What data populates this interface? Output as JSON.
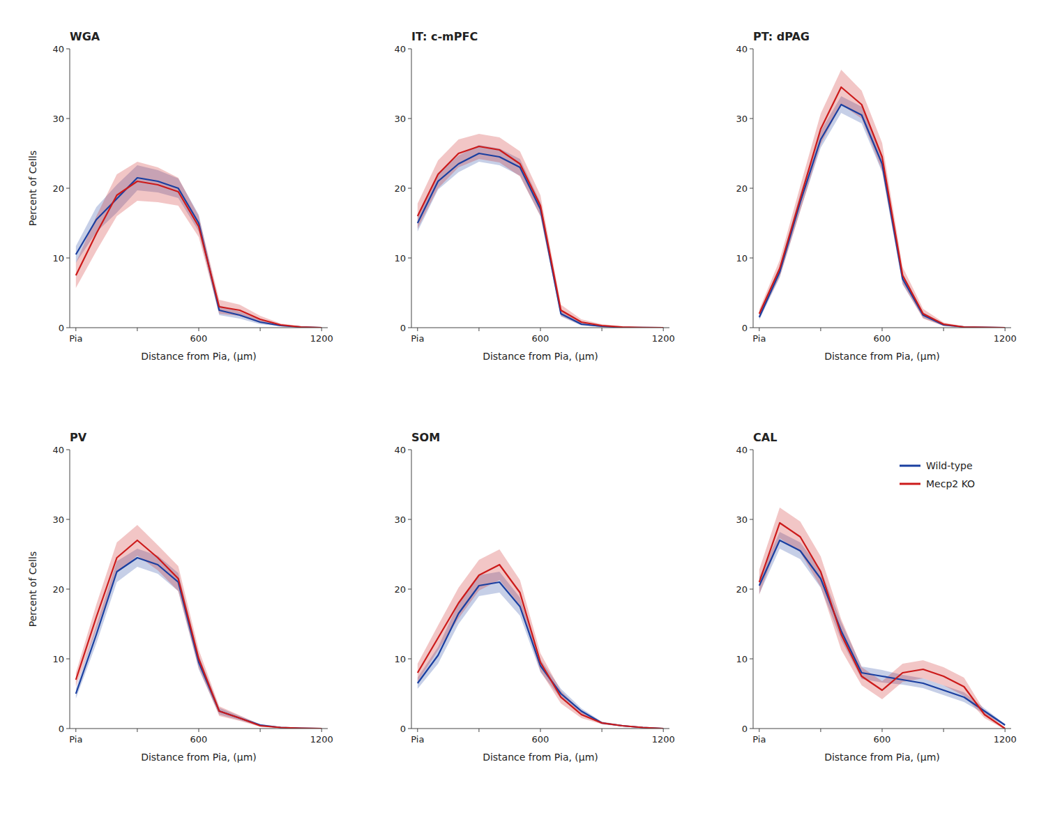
{
  "chart_data": [
    {
      "type": "line",
      "title": "WGA",
      "xlabel": "Distance from Pia, (μm)",
      "ylabel": "Percent of Cells",
      "x": [
        0,
        100,
        200,
        300,
        400,
        500,
        600,
        700,
        800,
        900,
        1000,
        1100,
        1200
      ],
      "series": [
        {
          "name": "Wild-type",
          "color": "#1a3fa0",
          "values": [
            10.5,
            15.5,
            18.5,
            21.5,
            21.0,
            20.0,
            15.0,
            2.5,
            1.8,
            0.8,
            0.3,
            0.1,
            0.0
          ],
          "sem": [
            1.2,
            1.8,
            2.0,
            1.8,
            1.6,
            1.4,
            1.2,
            0.7,
            0.5,
            0.3,
            0.1,
            0.05,
            0.0
          ]
        },
        {
          "name": "Mecp2 KO",
          "color": "#cc1a1a",
          "values": [
            7.5,
            13.5,
            19.0,
            21.0,
            20.5,
            19.5,
            14.5,
            3.0,
            2.5,
            1.2,
            0.4,
            0.1,
            0.0
          ],
          "sem": [
            1.8,
            2.5,
            3.0,
            2.8,
            2.5,
            2.0,
            1.5,
            1.0,
            0.8,
            0.5,
            0.2,
            0.1,
            0.0
          ]
        }
      ],
      "xlim": [
        -30,
        1230
      ],
      "ylim": [
        0,
        40
      ],
      "yticks": [
        0,
        10,
        20,
        30,
        40
      ],
      "xticks": [
        {
          "value": 0,
          "label": "Pia"
        },
        {
          "value": 300,
          "label": null
        },
        600,
        {
          "value": 900,
          "label": null
        },
        1200
      ],
      "grid": false
    },
    {
      "type": "line",
      "title": "IT: c-mPFC",
      "xlabel": "Distance from Pia, (μm)",
      "x": [
        0,
        100,
        200,
        300,
        400,
        500,
        600,
        700,
        800,
        900,
        1000,
        1100,
        1200
      ],
      "series": [
        {
          "name": "Wild-type",
          "color": "#1a3fa0",
          "values": [
            15.0,
            21.0,
            23.5,
            25.0,
            24.5,
            23.0,
            17.0,
            2.0,
            0.5,
            0.2,
            0.05,
            0.02,
            0.0
          ],
          "sem": [
            1.2,
            1.2,
            1.2,
            1.2,
            1.2,
            1.2,
            1.0,
            0.4,
            0.2,
            0.1,
            0.03,
            0.01,
            0.0
          ]
        },
        {
          "name": "Mecp2 KO",
          "color": "#cc1a1a",
          "values": [
            16.0,
            22.0,
            25.0,
            26.0,
            25.5,
            23.5,
            17.5,
            2.5,
            0.8,
            0.3,
            0.1,
            0.02,
            0.0
          ],
          "sem": [
            1.8,
            2.0,
            2.0,
            1.8,
            1.8,
            1.8,
            1.5,
            0.8,
            0.4,
            0.2,
            0.08,
            0.02,
            0.0
          ]
        }
      ],
      "xlim": [
        -30,
        1230
      ],
      "ylim": [
        0,
        40
      ],
      "yticks": [
        0,
        10,
        20,
        30,
        40
      ],
      "xticks": [
        {
          "value": 0,
          "label": "Pia"
        },
        {
          "value": 300,
          "label": null
        },
        600,
        {
          "value": 900,
          "label": null
        },
        1200
      ],
      "grid": false
    },
    {
      "type": "line",
      "title": "PT: dPAG",
      "xlabel": "Distance from Pia, (μm)",
      "x": [
        0,
        100,
        200,
        300,
        400,
        500,
        600,
        700,
        800,
        900,
        1000,
        1100,
        1200
      ],
      "series": [
        {
          "name": "Wild-type",
          "color": "#1a3fa0",
          "values": [
            1.5,
            8.0,
            18.0,
            27.0,
            32.0,
            30.5,
            23.5,
            7.0,
            1.8,
            0.4,
            0.1,
            0.05,
            0.0
          ],
          "sem": [
            0.4,
            0.8,
            1.2,
            1.2,
            1.2,
            1.2,
            1.2,
            0.8,
            0.4,
            0.15,
            0.05,
            0.02,
            0.0
          ]
        },
        {
          "name": "Mecp2 KO",
          "color": "#cc1a1a",
          "values": [
            2.0,
            8.5,
            18.5,
            28.5,
            34.5,
            32.0,
            24.5,
            7.5,
            2.0,
            0.5,
            0.1,
            0.05,
            0.0
          ],
          "sem": [
            0.6,
            1.2,
            1.8,
            2.2,
            2.5,
            2.0,
            2.0,
            1.2,
            0.7,
            0.25,
            0.08,
            0.03,
            0.0
          ]
        }
      ],
      "xlim": [
        -30,
        1230
      ],
      "ylim": [
        0,
        40
      ],
      "yticks": [
        0,
        10,
        20,
        30,
        40
      ],
      "xticks": [
        {
          "value": 0,
          "label": "Pia"
        },
        {
          "value": 300,
          "label": null
        },
        600,
        {
          "value": 900,
          "label": null
        },
        1200
      ],
      "grid": false
    },
    {
      "type": "line",
      "title": "PV",
      "xlabel": "Distance from Pia, (μm)",
      "ylabel": "Percent of Cells",
      "x": [
        0,
        100,
        200,
        300,
        400,
        500,
        600,
        700,
        800,
        900,
        1000,
        1100,
        1200
      ],
      "series": [
        {
          "name": "Wild-type",
          "color": "#1a3fa0",
          "values": [
            5.0,
            13.5,
            22.5,
            24.5,
            23.5,
            21.0,
            9.5,
            2.5,
            1.5,
            0.5,
            0.15,
            0.05,
            0.0
          ],
          "sem": [
            0.7,
            1.3,
            1.5,
            1.3,
            1.3,
            1.3,
            1.0,
            0.5,
            0.3,
            0.15,
            0.08,
            0.02,
            0.0
          ]
        },
        {
          "name": "Mecp2 KO",
          "color": "#cc1a1a",
          "values": [
            7.0,
            16.0,
            24.5,
            27.0,
            24.5,
            21.5,
            10.0,
            2.5,
            1.5,
            0.4,
            0.15,
            0.05,
            0.0
          ],
          "sem": [
            1.0,
            1.8,
            2.2,
            2.2,
            1.8,
            1.8,
            1.3,
            0.7,
            0.4,
            0.15,
            0.08,
            0.02,
            0.0
          ]
        }
      ],
      "xlim": [
        -30,
        1230
      ],
      "ylim": [
        0,
        40
      ],
      "yticks": [
        0,
        10,
        20,
        30,
        40
      ],
      "xticks": [
        {
          "value": 0,
          "label": "Pia"
        },
        {
          "value": 300,
          "label": null
        },
        600,
        {
          "value": 900,
          "label": null
        },
        1200
      ],
      "grid": false
    },
    {
      "type": "line",
      "title": "SOM",
      "xlabel": "Distance from Pia, (μm)",
      "x": [
        0,
        100,
        200,
        300,
        400,
        500,
        600,
        700,
        800,
        900,
        1000,
        1100,
        1200
      ],
      "series": [
        {
          "name": "Wild-type",
          "color": "#1a3fa0",
          "values": [
            6.5,
            10.5,
            16.5,
            20.5,
            21.0,
            17.5,
            9.0,
            5.0,
            2.5,
            0.8,
            0.4,
            0.15,
            0.0
          ],
          "sem": [
            0.8,
            1.2,
            1.5,
            1.5,
            1.5,
            1.3,
            0.9,
            0.7,
            0.4,
            0.18,
            0.1,
            0.05,
            0.0
          ]
        },
        {
          "name": "Mecp2 KO",
          "color": "#cc1a1a",
          "values": [
            8.0,
            13.0,
            18.0,
            22.0,
            23.5,
            19.5,
            9.5,
            4.5,
            2.0,
            0.8,
            0.4,
            0.15,
            0.0
          ],
          "sem": [
            1.3,
            1.8,
            2.2,
            2.2,
            2.2,
            1.8,
            1.3,
            0.9,
            0.5,
            0.18,
            0.1,
            0.05,
            0.0
          ]
        }
      ],
      "xlim": [
        -30,
        1230
      ],
      "ylim": [
        0,
        40
      ],
      "yticks": [
        0,
        10,
        20,
        30,
        40
      ],
      "xticks": [
        {
          "value": 0,
          "label": "Pia"
        },
        {
          "value": 300,
          "label": null
        },
        600,
        {
          "value": 900,
          "label": null
        },
        1200
      ],
      "grid": false
    },
    {
      "type": "line",
      "title": "CAL",
      "xlabel": "Distance from Pia, (μm)",
      "x": [
        0,
        100,
        200,
        300,
        400,
        500,
        600,
        700,
        800,
        900,
        1000,
        1100,
        1200
      ],
      "series": [
        {
          "name": "Wild-type",
          "color": "#1a3fa0",
          "values": [
            20.5,
            27.0,
            25.5,
            21.5,
            14.0,
            8.0,
            7.5,
            7.0,
            6.5,
            5.5,
            4.5,
            2.5,
            0.5
          ],
          "sem": [
            1.2,
            1.2,
            1.2,
            1.3,
            1.3,
            0.9,
            0.9,
            0.7,
            0.7,
            0.7,
            0.7,
            0.4,
            0.15
          ]
        },
        {
          "name": "Mecp2 KO",
          "color": "#cc1a1a",
          "values": [
            21.0,
            29.5,
            27.5,
            22.5,
            13.5,
            7.5,
            5.5,
            8.0,
            8.5,
            7.5,
            6.0,
            2.0,
            0.0
          ],
          "sem": [
            1.8,
            2.2,
            2.2,
            2.2,
            2.2,
            1.3,
            1.3,
            1.3,
            1.3,
            1.3,
            1.3,
            0.5,
            0.15
          ]
        }
      ],
      "xlim": [
        -30,
        1230
      ],
      "ylim": [
        0,
        40
      ],
      "yticks": [
        0,
        10,
        20,
        30,
        40
      ],
      "xticks": [
        {
          "value": 0,
          "label": "Pia"
        },
        {
          "value": 300,
          "label": null
        },
        600,
        {
          "value": 900,
          "label": null
        },
        1200
      ],
      "grid": false,
      "legend": "upper right"
    }
  ]
}
